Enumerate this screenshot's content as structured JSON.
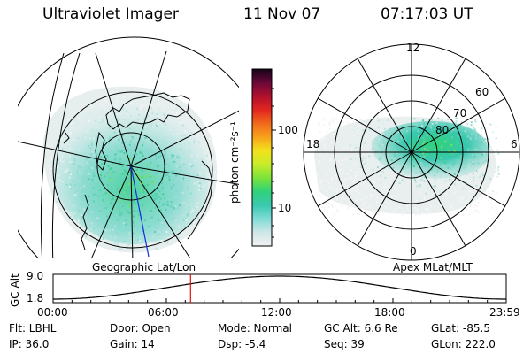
{
  "header": {
    "title": "Ultraviolet Imager",
    "date": "11 Nov 07",
    "time": "07:17:03 UT"
  },
  "colorbar": {
    "unit_label": "photon cm⁻²s⁻¹",
    "tick_100": "100",
    "tick_10": "10",
    "stops": [
      "#f2f2f2",
      "#cfe6e6",
      "#7fdcd6",
      "#39c8b0",
      "#2fd27a",
      "#7ce33a",
      "#c9ec2a",
      "#f2e21c",
      "#f8a21a",
      "#f06a1c",
      "#e2261e",
      "#b0102e",
      "#6a0838",
      "#120418"
    ]
  },
  "left_map": {
    "caption": "Geographic Lat/Lon"
  },
  "right_map": {
    "caption": "Apex MLat/MLT",
    "mlt_labels": {
      "top": "12",
      "left": "18",
      "right": "6",
      "bottom": "0"
    },
    "mlat_labels": [
      "60",
      "70",
      "80"
    ]
  },
  "altitude_plot": {
    "ylabel": "GC Alt",
    "ymax": "9.0",
    "ymin": "1.8",
    "x_ticks": [
      "00:00",
      "06:00",
      "12:00",
      "18:00",
      "23:59"
    ],
    "current_time_hours": 7.28,
    "marker_color": "#e01010"
  },
  "info": {
    "flt": "Flt: LBHL",
    "ip": "IP: 36.0",
    "door": "Door: Open",
    "gain": "Gain: 14",
    "mode": "Mode: Normal",
    "dsp": "Dsp:   -5.4",
    "gc_alt": "GC Alt: 6.6 Re",
    "seq": "Seq: 39",
    "glat": "GLat:  -85.5",
    "glon": "GLon: 222.0"
  }
}
